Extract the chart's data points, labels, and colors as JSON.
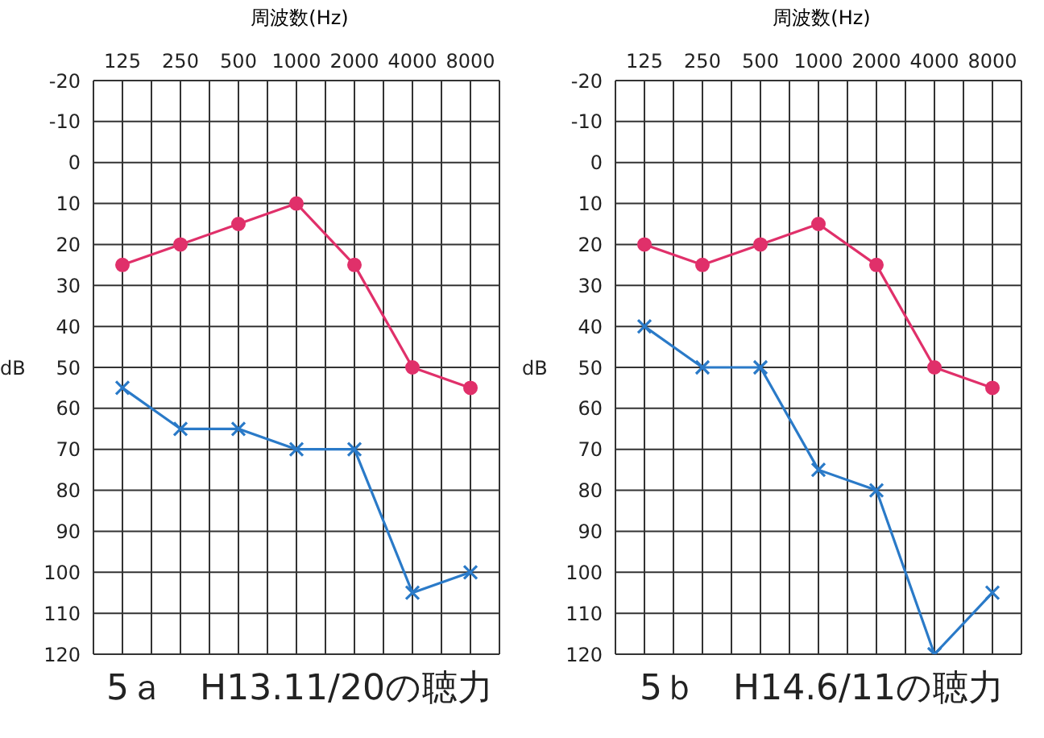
{
  "chart_data": [
    {
      "type": "line",
      "title": "5ａ　H13.11/20の聴力",
      "xlabel": "周波数(Hz)",
      "ylabel": "dB",
      "categories": [
        "125",
        "250",
        "500",
        "1000",
        "2000",
        "4000",
        "8000"
      ],
      "ylim": [
        120,
        -20
      ],
      "yticks": [
        -20,
        -10,
        0,
        10,
        20,
        30,
        40,
        50,
        60,
        70,
        80,
        90,
        100,
        110,
        120
      ],
      "grid": true,
      "series": [
        {
          "color": "#e0306a",
          "marker": "circle",
          "values": [
            25,
            20,
            15,
            10,
            25,
            50,
            55
          ]
        },
        {
          "color": "#2a7ac8",
          "marker": "cross",
          "values": [
            55,
            65,
            65,
            70,
            70,
            105,
            100
          ]
        }
      ]
    },
    {
      "type": "line",
      "title": "5ｂ　H14.6/11の聴力",
      "xlabel": "周波数(Hz)",
      "ylabel": "dB",
      "categories": [
        "125",
        "250",
        "500",
        "1000",
        "2000",
        "4000",
        "8000"
      ],
      "ylim": [
        120,
        -20
      ],
      "yticks": [
        -20,
        -10,
        0,
        10,
        20,
        30,
        40,
        50,
        60,
        70,
        80,
        90,
        100,
        110,
        120
      ],
      "grid": true,
      "series": [
        {
          "color": "#e0306a",
          "marker": "circle",
          "values": [
            20,
            25,
            20,
            15,
            25,
            50,
            55
          ]
        },
        {
          "color": "#2a7ac8",
          "marker": "cross",
          "values": [
            40,
            50,
            50,
            75,
            80,
            120,
            105
          ]
        }
      ]
    }
  ]
}
